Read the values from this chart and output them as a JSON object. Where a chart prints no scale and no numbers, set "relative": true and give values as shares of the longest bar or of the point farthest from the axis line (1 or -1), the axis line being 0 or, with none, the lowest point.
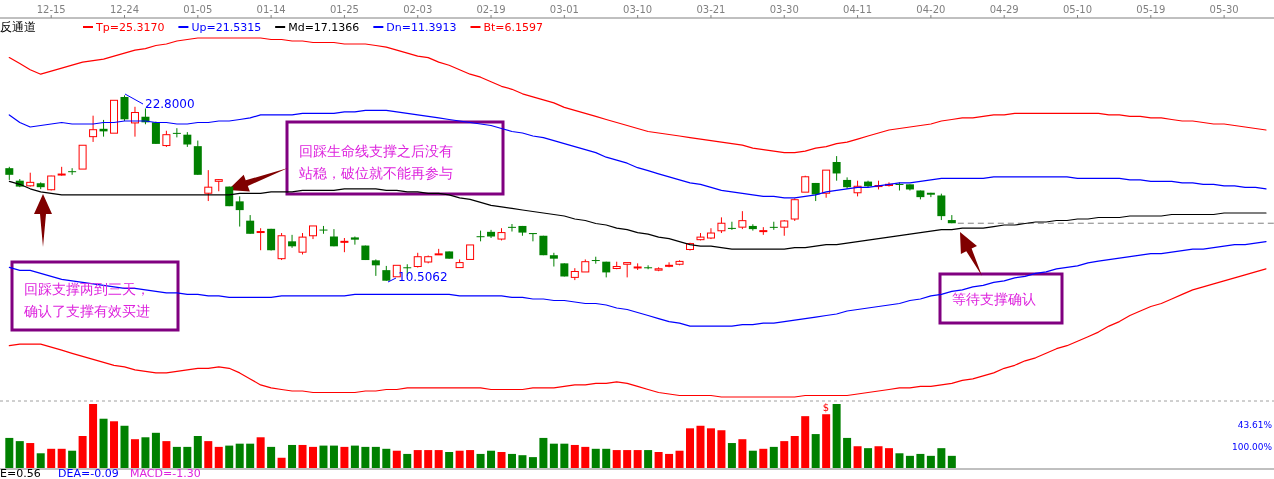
{
  "chart_data": [
    {
      "type": "candlestick",
      "legend": "top left",
      "categories": [
        null,
        null,
        null,
        null,
        "12-15",
        null,
        null,
        null,
        null,
        null,
        null,
        "12-24",
        null,
        null,
        null,
        null,
        null,
        null,
        "01-05",
        null,
        null,
        null,
        null,
        null,
        null,
        "01-14",
        null,
        null,
        null,
        null,
        null,
        null,
        "01-25",
        null,
        null,
        null,
        null,
        null,
        null,
        "02-03",
        null,
        null,
        null,
        null,
        null,
        null,
        "02-19",
        null,
        null,
        null,
        null,
        null,
        null,
        "03-01",
        null,
        null,
        null,
        null,
        null,
        null,
        "03-10",
        null,
        null,
        null,
        null,
        null,
        null,
        "03-21",
        null,
        null,
        null,
        null,
        null,
        null,
        "03-30",
        null,
        null,
        null,
        null,
        null,
        null,
        "04-11",
        null,
        null,
        null,
        null,
        null,
        null,
        "04-20",
        null,
        null,
        null,
        null,
        null,
        null,
        "04-29",
        null,
        null,
        null,
        null,
        null,
        null,
        "05-10",
        null,
        null,
        null,
        null,
        null,
        null,
        "05-19",
        null,
        null,
        null,
        null,
        null,
        null,
        "05-30",
        null,
        null,
        null,
        null
      ],
      "ohlc": [
        [
          17.97,
          18.06,
          17.19,
          17.53
        ],
        [
          17.14,
          17.25,
          16.71,
          16.75
        ],
        [
          16.8,
          17.67,
          16.75,
          17.03
        ],
        [
          16.97,
          17.03,
          16.58,
          16.71
        ],
        [
          16.54,
          17.47,
          16.49,
          17.45
        ],
        [
          17.56,
          18.06,
          17.47,
          17.58
        ],
        [
          17.77,
          17.97,
          17.53,
          17.75
        ],
        [
          17.91,
          19.49,
          17.91,
          19.49
        ],
        [
          20.06,
          21.45,
          19.71,
          20.52
        ],
        [
          20.58,
          21.17,
          20.06,
          20.41
        ],
        [
          20.29,
          22.47,
          20.29,
          22.47
        ],
        [
          22.69,
          22.8,
          21.1,
          21.21
        ],
        [
          20.97,
          22.04,
          20.06,
          21.66
        ],
        [
          21.38,
          21.93,
          20.88,
          21.01
        ],
        [
          21.01,
          21.06,
          19.58,
          19.58
        ],
        [
          19.47,
          20.45,
          19.38,
          20.19
        ],
        [
          20.31,
          20.62,
          20.01,
          20.29
        ],
        [
          20.19,
          20.36,
          19.38,
          19.54
        ],
        [
          19.43,
          19.8,
          17.53,
          17.53
        ],
        [
          16.31,
          17.84,
          15.79,
          16.71
        ],
        [
          17.1,
          17.25,
          16.44,
          17.21
        ],
        [
          16.75,
          16.75,
          15.45,
          15.45
        ],
        [
          15.77,
          16.1,
          14.1,
          15.19
        ],
        [
          14.49,
          14.86,
          13.62,
          13.62
        ],
        [
          13.75,
          13.99,
          12.53,
          13.77
        ],
        [
          13.95,
          13.95,
          12.51,
          12.53
        ],
        [
          11.97,
          13.67,
          11.88,
          13.49
        ],
        [
          13.12,
          13.55,
          12.69,
          12.79
        ],
        [
          12.4,
          13.67,
          12.25,
          13.4
        ],
        [
          13.49,
          14.14,
          13.27,
          14.14
        ],
        [
          13.9,
          14.14,
          13.62,
          13.88
        ],
        [
          13.44,
          13.93,
          12.79,
          12.79
        ],
        [
          13.1,
          13.34,
          12.4,
          13.12
        ],
        [
          13.38,
          13.44,
          12.9,
          13.23
        ],
        [
          12.84,
          12.84,
          11.88,
          11.88
        ],
        [
          11.86,
          11.92,
          10.83,
          11.53
        ],
        [
          11.21,
          11.49,
          10.5062,
          10.51
        ],
        [
          10.77,
          11.53,
          10.77,
          11.53
        ],
        [
          11.4,
          11.6,
          10.83,
          11.38
        ],
        [
          11.45,
          12.36,
          11.38,
          12.1
        ],
        [
          11.75,
          12.18,
          11.66,
          12.1
        ],
        [
          12.23,
          12.62,
          12.23,
          12.29
        ],
        [
          12.45,
          12.45,
          11.97,
          11.97
        ],
        [
          11.38,
          11.92,
          11.38,
          11.71
        ],
        [
          11.92,
          12.88,
          11.92,
          12.88
        ],
        [
          13.46,
          13.83,
          13.12,
          13.44
        ],
        [
          13.75,
          13.88,
          13.34,
          13.44
        ],
        [
          13.27,
          13.99,
          13.18,
          13.7
        ],
        [
          14.08,
          14.27,
          13.77,
          14.06
        ],
        [
          14.14,
          14.14,
          13.49,
          13.7
        ],
        [
          13.67,
          13.67,
          13.12,
          13.6
        ],
        [
          13.49,
          13.49,
          12.2,
          12.2
        ],
        [
          12.2,
          12.36,
          11.45,
          11.97
        ],
        [
          11.66,
          11.66,
          10.79,
          10.79
        ],
        [
          10.73,
          11.34,
          10.55,
          11.12
        ],
        [
          11.09,
          11.92,
          11.09,
          11.77
        ],
        [
          11.88,
          12.1,
          11.64,
          11.86
        ],
        [
          11.77,
          11.77,
          10.73,
          11.06
        ],
        [
          11.32,
          11.77,
          11.27,
          11.45
        ],
        [
          11.6,
          11.71,
          10.73,
          11.71
        ],
        [
          11.4,
          11.66,
          11.22,
          11.42
        ],
        [
          11.4,
          11.53,
          11.27,
          11.38
        ],
        [
          11.21,
          11.4,
          11.14,
          11.3
        ],
        [
          11.51,
          11.73,
          11.4,
          11.53
        ],
        [
          11.6,
          11.86,
          11.53,
          11.79
        ],
        [
          12.58,
          13.03,
          12.51,
          12.97
        ],
        [
          13.23,
          13.67,
          13.18,
          13.4
        ],
        [
          13.34,
          13.99,
          13.27,
          13.67
        ],
        [
          13.82,
          14.71,
          13.67,
          14.32
        ],
        [
          14.01,
          14.42,
          13.88,
          13.99
        ],
        [
          14.06,
          15.12,
          13.93,
          14.49
        ],
        [
          14.14,
          14.25,
          13.83,
          13.93
        ],
        [
          13.81,
          14.06,
          13.55,
          13.83
        ],
        [
          14.08,
          14.42,
          13.88,
          14.06
        ],
        [
          14.06,
          14.53,
          13.49,
          14.47
        ],
        [
          14.6,
          15.97,
          14.47,
          15.88
        ],
        [
          16.38,
          17.47,
          16.38,
          17.4
        ],
        [
          16.99,
          16.99,
          15.79,
          16.23
        ],
        [
          16.31,
          17.84,
          16.01,
          17.84
        ],
        [
          18.38,
          18.77,
          17.14,
          17.62
        ],
        [
          17.19,
          17.36,
          16.6,
          16.71
        ],
        [
          16.34,
          17.14,
          16.1,
          16.77
        ],
        [
          17.08,
          17.14,
          16.71,
          16.77
        ],
        [
          16.75,
          17.14,
          16.56,
          16.82
        ],
        [
          16.82,
          17.03,
          16.75,
          16.9
        ],
        [
          16.92,
          17.03,
          16.49,
          16.9
        ],
        [
          16.9,
          16.9,
          16.49,
          16.56
        ],
        [
          16.49,
          16.49,
          15.9,
          16.05
        ],
        [
          16.34,
          16.34,
          16.05,
          16.21
        ],
        [
          16.16,
          16.28,
          14.53,
          14.79
        ],
        [
          14.53,
          14.86,
          14.32,
          14.32
        ],
        null,
        null,
        null,
        null,
        null,
        null,
        null,
        null,
        null,
        null,
        null,
        null,
        null,
        null,
        null,
        null,
        null,
        null,
        null,
        null,
        null,
        null,
        null,
        null,
        null,
        null,
        null,
        null,
        null,
        null
      ],
      "series": [
        {
          "name": "Tp=25.3170",
          "type": "line",
          "color": "#ff0000",
          "values": [
            25.3,
            24.9,
            24.5,
            24.2,
            24.4,
            24.6,
            24.8,
            25.0,
            25.1,
            25.2,
            25.4,
            25.6,
            25.8,
            25.9,
            26.1,
            26.2,
            26.4,
            26.5,
            26.6,
            26.6,
            26.6,
            26.6,
            26.6,
            26.6,
            26.6,
            26.5,
            26.5,
            26.4,
            26.4,
            26.3,
            26.3,
            26.3,
            26.2,
            26.2,
            26.2,
            26.1,
            26.0,
            25.8,
            25.6,
            25.4,
            25.3,
            25.0,
            24.8,
            24.5,
            24.2,
            24.0,
            23.7,
            23.4,
            23.2,
            22.9,
            22.7,
            22.5,
            22.3,
            22.0,
            21.8,
            21.6,
            21.4,
            21.2,
            21.0,
            20.8,
            20.6,
            20.4,
            20.3,
            20.2,
            20.1,
            20.0,
            19.9,
            19.8,
            19.7,
            19.6,
            19.5,
            19.3,
            19.2,
            19.1,
            19.0,
            19.0,
            19.1,
            19.3,
            19.4,
            19.6,
            19.7,
            19.9,
            20.1,
            20.3,
            20.5,
            20.6,
            20.7,
            20.8,
            20.9,
            21.1,
            21.2,
            21.3,
            21.3,
            21.4,
            21.5,
            21.5,
            21.6,
            21.6,
            21.6,
            21.6,
            21.6,
            21.6,
            21.6,
            21.6,
            21.6,
            21.5,
            21.5,
            21.4,
            21.4,
            21.3,
            21.3,
            21.2,
            21.1,
            21.1,
            21.0,
            20.9,
            20.9,
            20.8,
            20.7,
            20.6,
            20.5
          ]
        },
        {
          "name": "Up=21.5315",
          "type": "line",
          "color": "#0000ff",
          "values": [
            21.5,
            21.0,
            20.7,
            20.8,
            20.9,
            21.0,
            20.9,
            20.9,
            20.9,
            21.0,
            21.0,
            21.1,
            21.1,
            21.1,
            21.0,
            21.0,
            20.9,
            20.9,
            21.0,
            21.0,
            21.1,
            21.1,
            21.2,
            21.3,
            21.5,
            21.5,
            21.5,
            21.5,
            21.6,
            21.6,
            21.6,
            21.6,
            21.7,
            21.7,
            21.8,
            21.8,
            21.8,
            21.7,
            21.6,
            21.5,
            21.4,
            21.3,
            21.2,
            21.1,
            21.0,
            20.9,
            20.8,
            20.6,
            20.4,
            20.3,
            20.1,
            20.0,
            19.8,
            19.6,
            19.4,
            19.2,
            19.0,
            18.7,
            18.5,
            18.3,
            18.0,
            17.8,
            17.6,
            17.4,
            17.2,
            17.0,
            16.9,
            16.7,
            16.5,
            16.4,
            16.3,
            16.2,
            16.1,
            16.1,
            16.0,
            16.0,
            16.1,
            16.2,
            16.4,
            16.5,
            16.6,
            16.7,
            16.7,
            16.8,
            16.9,
            17.0,
            17.0,
            17.1,
            17.2,
            17.3,
            17.3,
            17.3,
            17.3,
            17.3,
            17.4,
            17.4,
            17.4,
            17.4,
            17.4,
            17.4,
            17.4,
            17.4,
            17.3,
            17.3,
            17.3,
            17.3,
            17.3,
            17.2,
            17.2,
            17.1,
            17.1,
            17.1,
            17.0,
            17.0,
            16.9,
            16.9,
            16.8,
            16.8,
            16.7,
            16.7,
            16.6
          ]
        },
        {
          "name": "Md=17.1366",
          "type": "line",
          "color": "#000000",
          "values": [
            17.1,
            16.9,
            16.6,
            16.4,
            16.3,
            16.2,
            16.2,
            16.2,
            16.2,
            16.2,
            16.2,
            16.2,
            16.2,
            16.2,
            16.2,
            16.2,
            16.2,
            16.2,
            16.2,
            16.2,
            16.2,
            16.2,
            16.3,
            16.3,
            16.3,
            16.4,
            16.4,
            16.4,
            16.5,
            16.5,
            16.5,
            16.5,
            16.6,
            16.6,
            16.6,
            16.6,
            16.5,
            16.5,
            16.4,
            16.4,
            16.3,
            16.3,
            16.2,
            16.0,
            15.9,
            15.7,
            15.5,
            15.4,
            15.3,
            15.2,
            15.1,
            15.0,
            14.9,
            14.8,
            14.6,
            14.5,
            14.3,
            14.2,
            14.0,
            13.9,
            13.7,
            13.6,
            13.4,
            13.3,
            13.1,
            12.9,
            12.8,
            12.8,
            12.7,
            12.6,
            12.6,
            12.6,
            12.6,
            12.6,
            12.6,
            12.7,
            12.7,
            12.8,
            12.9,
            12.9,
            13.0,
            13.1,
            13.2,
            13.3,
            13.4,
            13.5,
            13.6,
            13.7,
            13.8,
            13.9,
            13.9,
            14.0,
            14.0,
            14.0,
            14.1,
            14.2,
            14.2,
            14.3,
            14.4,
            14.4,
            14.5,
            14.5,
            14.6,
            14.6,
            14.7,
            14.7,
            14.7,
            14.8,
            14.8,
            14.8,
            14.8,
            14.9,
            14.9,
            14.9,
            14.9,
            14.9,
            15.0,
            15.0,
            15.0,
            15.0,
            15.0
          ]
        },
        {
          "name": "Dn=11.3913",
          "type": "line",
          "color": "#0000ff",
          "values": [
            11.4,
            11.2,
            11.2,
            11.0,
            10.8,
            10.6,
            10.5,
            10.4,
            10.3,
            10.2,
            10.1,
            10.0,
            10.0,
            9.9,
            9.8,
            9.7,
            9.7,
            9.6,
            9.6,
            9.5,
            9.5,
            9.4,
            9.4,
            9.4,
            9.4,
            9.4,
            9.5,
            9.5,
            9.5,
            9.5,
            9.5,
            9.5,
            9.5,
            9.6,
            9.6,
            9.6,
            9.6,
            9.6,
            9.6,
            9.6,
            9.6,
            9.6,
            9.6,
            9.5,
            9.5,
            9.5,
            9.5,
            9.5,
            9.4,
            9.4,
            9.3,
            9.3,
            9.2,
            9.2,
            9.1,
            9.0,
            9.0,
            8.9,
            8.7,
            8.6,
            8.4,
            8.2,
            8.0,
            7.8,
            7.7,
            7.5,
            7.5,
            7.5,
            7.5,
            7.5,
            7.6,
            7.6,
            7.7,
            7.7,
            7.8,
            7.9,
            8.0,
            8.1,
            8.2,
            8.3,
            8.5,
            8.6,
            8.7,
            8.8,
            8.9,
            9.0,
            9.2,
            9.3,
            9.5,
            9.6,
            9.8,
            9.9,
            10.1,
            10.2,
            10.4,
            10.5,
            10.7,
            10.8,
            11.0,
            11.1,
            11.3,
            11.4,
            11.5,
            11.7,
            11.8,
            11.9,
            12.0,
            12.1,
            12.2,
            12.3,
            12.3,
            12.4,
            12.5,
            12.6,
            12.6,
            12.7,
            12.8,
            12.9,
            12.9,
            13.0,
            13.1
          ]
        },
        {
          "name": "Bt=6.1597",
          "type": "line",
          "color": "#ff0000",
          "values": [
            6.2,
            6.3,
            6.3,
            6.3,
            6.1,
            5.9,
            5.7,
            5.5,
            5.3,
            5.1,
            4.9,
            4.8,
            4.6,
            4.5,
            4.4,
            4.4,
            4.5,
            4.6,
            4.7,
            4.7,
            4.8,
            4.7,
            4.4,
            4.0,
            3.6,
            3.4,
            3.3,
            3.2,
            3.2,
            3.1,
            3.1,
            3.1,
            3.1,
            3.1,
            3.2,
            3.2,
            3.3,
            3.3,
            3.4,
            3.4,
            3.4,
            3.4,
            3.4,
            3.4,
            3.4,
            3.4,
            3.3,
            3.3,
            3.3,
            3.3,
            3.4,
            3.4,
            3.4,
            3.5,
            3.6,
            3.6,
            3.7,
            3.7,
            3.8,
            3.7,
            3.5,
            3.3,
            3.1,
            3.0,
            2.9,
            2.9,
            2.9,
            2.9,
            2.8,
            2.8,
            2.8,
            2.8,
            2.8,
            2.8,
            2.8,
            2.8,
            2.9,
            2.9,
            2.9,
            2.9,
            2.9,
            3.0,
            3.1,
            3.2,
            3.3,
            3.4,
            3.4,
            3.5,
            3.5,
            3.6,
            3.7,
            3.9,
            4.0,
            4.2,
            4.4,
            4.7,
            4.9,
            5.2,
            5.4,
            5.7,
            6.0,
            6.2,
            6.5,
            6.8,
            7.1,
            7.5,
            7.8,
            8.2,
            8.5,
            8.8,
            9.0,
            9.3,
            9.6,
            9.9,
            10.1,
            10.3,
            10.5,
            10.7,
            10.9,
            11.1,
            11.3
          ]
        }
      ],
      "ref_lines": [
        {
          "axis": "y",
          "value": 14.32,
          "color": "#808080",
          "line_style": "dashed"
        }
      ],
      "annotations": [
        "反通道",
        "22.8000",
        "10.5062",
        "回踩支撑两到三天，确认了支撑有效买进",
        "回踩生命线支撑之后没有站稳，破位就不能再参与",
        "等待支撑确认"
      ]
    },
    {
      "type": "bar",
      "relative": true,
      "categories": [
        null,
        null,
        null,
        null,
        null,
        null,
        null,
        null,
        null,
        null,
        null,
        null,
        null,
        null,
        null,
        null,
        null,
        null,
        null,
        null,
        null,
        null,
        null,
        null,
        null,
        null,
        null,
        null,
        null,
        null,
        null,
        null,
        null,
        null,
        null,
        null,
        null,
        null,
        null,
        null,
        null,
        null,
        null,
        null,
        null,
        null,
        null,
        null,
        null,
        null,
        null,
        null,
        null,
        null,
        null,
        null,
        null,
        null,
        null,
        null,
        null,
        null,
        null,
        null,
        null,
        null,
        null,
        null,
        null,
        null,
        null,
        null,
        null,
        null,
        null,
        null,
        null,
        null,
        null,
        null,
        null,
        null,
        null,
        null,
        null,
        null,
        null,
        null,
        null,
        null,
        null,
        null,
        null,
        null,
        null,
        null,
        null,
        null,
        null,
        null,
        null,
        null,
        null,
        null,
        null,
        null,
        null,
        null,
        null,
        null,
        null,
        null,
        null,
        null,
        null,
        null,
        null,
        null,
        null,
        null,
        null
      ],
      "values": [
        0.47,
        0.42,
        0.39,
        0.23,
        0.3,
        0.3,
        0.27,
        0.5,
        1,
        0.77,
        0.73,
        0.66,
        0.45,
        0.48,
        0.55,
        0.42,
        0.33,
        0.33,
        0.5,
        0.42,
        0.33,
        0.35,
        0.38,
        0.38,
        0.48,
        0.33,
        0.16,
        0.36,
        0.36,
        0.33,
        0.35,
        0.35,
        0.33,
        0.35,
        0.33,
        0.33,
        0.3,
        0.27,
        0.22,
        0.28,
        0.28,
        0.28,
        0.25,
        0.27,
        0.28,
        0.22,
        0.27,
        0.25,
        0.22,
        0.2,
        0.17,
        0.47,
        0.38,
        0.38,
        0.36,
        0.33,
        0.3,
        0.3,
        0.28,
        0.28,
        0.28,
        0.28,
        0.25,
        0.22,
        0.27,
        0.62,
        0.66,
        0.62,
        0.59,
        0.39,
        0.45,
        0.27,
        0.3,
        0.33,
        0.42,
        0.5,
        0.81,
        0.53,
        0.84,
        1,
        0.47,
        0.34,
        0.31,
        0.34,
        0.31,
        0.23,
        0.19,
        0.22,
        0.19,
        0.31,
        0.19,
        null,
        null,
        null,
        null,
        null,
        null,
        null,
        null,
        null,
        null,
        null,
        null,
        null,
        null,
        null,
        null,
        null,
        null,
        null,
        null,
        null,
        null,
        null,
        null,
        null,
        null,
        null,
        null,
        null,
        null
      ],
      "colors": [
        "#008000",
        "#008000",
        "#ff0000",
        "#008000",
        "#ff0000",
        "#ff0000",
        "#008000",
        "#ff0000",
        "#ff0000",
        "#008000",
        "#ff0000",
        "#008000",
        "#ff0000",
        "#008000",
        "#008000",
        "#ff0000",
        "#008000",
        "#008000",
        "#008000",
        "#ff0000",
        "#ff0000",
        "#008000",
        "#008000",
        "#008000",
        "#ff0000",
        "#008000",
        "#ff0000",
        "#008000",
        "#ff0000",
        "#ff0000",
        "#008000",
        "#008000",
        "#ff0000",
        "#008000",
        "#008000",
        "#008000",
        "#008000",
        "#ff0000",
        "#008000",
        "#ff0000",
        "#ff0000",
        "#ff0000",
        "#008000",
        "#ff0000",
        "#ff0000",
        "#008000",
        "#008000",
        "#ff0000",
        "#008000",
        "#008000",
        "#008000",
        "#008000",
        "#008000",
        "#008000",
        "#ff0000",
        "#ff0000",
        "#008000",
        "#008000",
        "#ff0000",
        "#ff0000",
        "#ff0000",
        "#008000",
        "#ff0000",
        "#ff0000",
        "#ff0000",
        "#ff0000",
        "#ff0000",
        "#ff0000",
        "#ff0000",
        "#008000",
        "#ff0000",
        "#008000",
        "#ff0000",
        "#008000",
        "#ff0000",
        "#ff0000",
        "#ff0000",
        "#008000",
        "#ff0000",
        "#008000",
        "#008000",
        "#ff0000",
        "#008000",
        "#ff0000",
        "#ff0000",
        "#008000",
        "#008000",
        "#008000",
        "#008000",
        "#008000",
        "#008000",
        null,
        null,
        null,
        null,
        null,
        null,
        null,
        null,
        null,
        null,
        null,
        null,
        null,
        null,
        null,
        null,
        null,
        null,
        null,
        null,
        null,
        null,
        null,
        null,
        null,
        null,
        null,
        null,
        null,
        null
      ],
      "annotations": [
        "$",
        "43.61%",
        "100.00%",
        "E=0.56",
        "DEA=-0.09",
        "MACD=-1.30"
      ]
    }
  ]
}
